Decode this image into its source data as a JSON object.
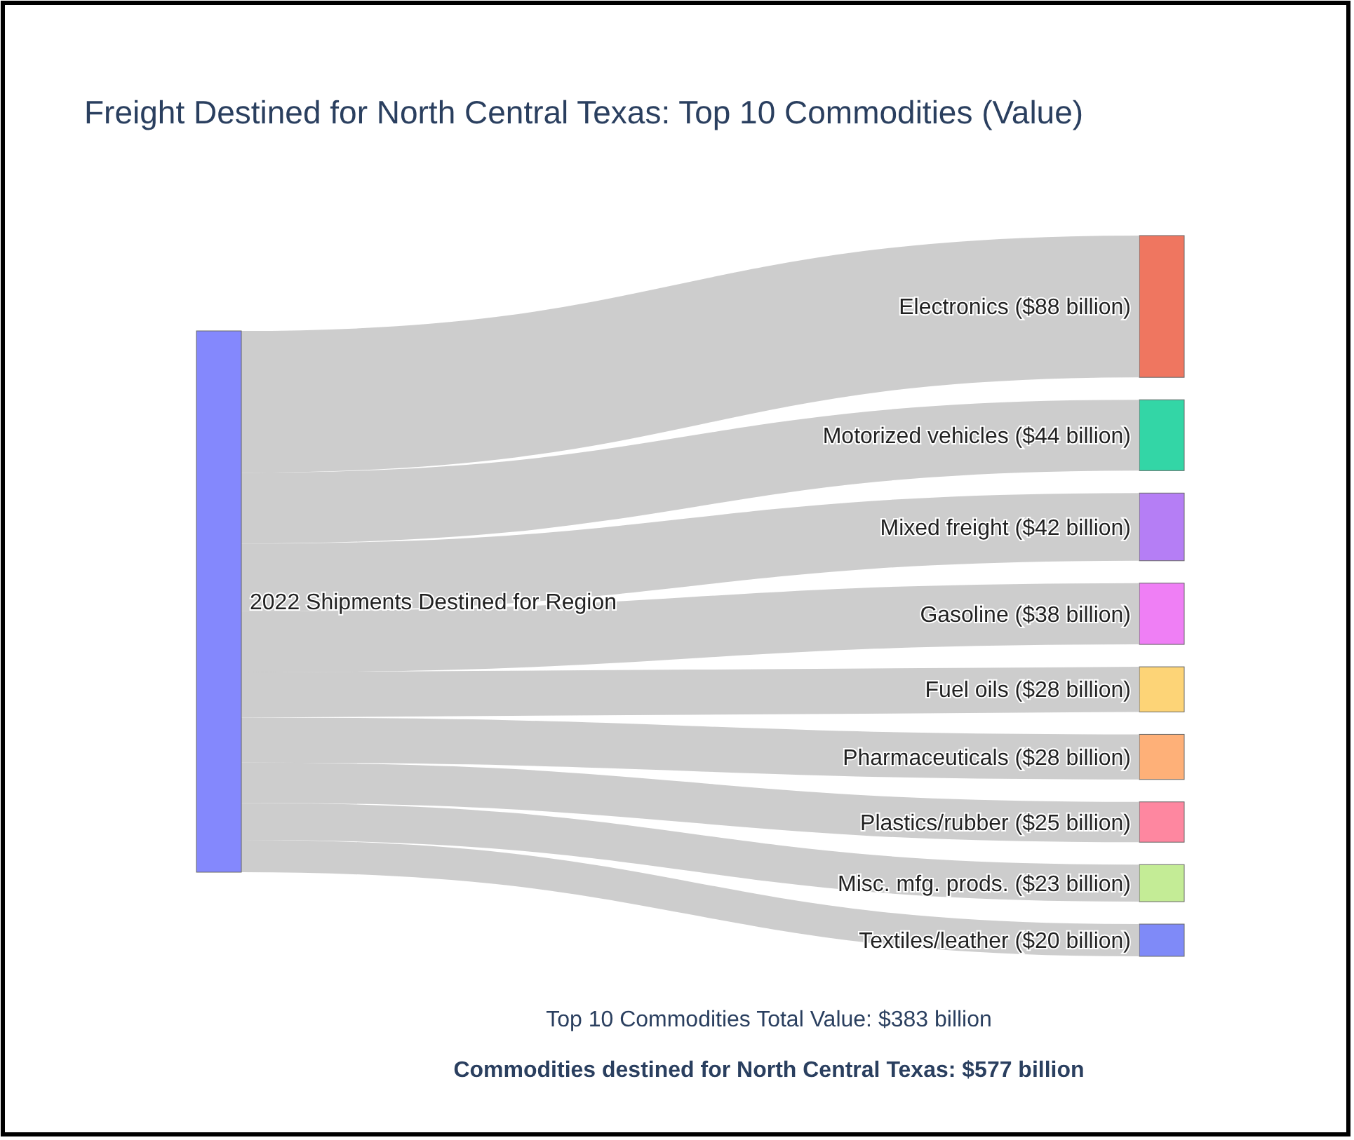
{
  "chart_data": {
    "type": "other",
    "title": "Freight Destined for North Central Texas: Top 10 Commodities (Value)",
    "categories": [
      "Electronics",
      "Motorized vehicles",
      "Mixed freight",
      "Gasoline",
      "Fuel oils",
      "Pharmaceuticals",
      "Plastics/rubber",
      "Misc. mfg. prods.",
      "Textiles/leather"
    ],
    "values": [
      88,
      44,
      42,
      38,
      28,
      28,
      25,
      23,
      20
    ],
    "value_labels": [
      "($88 billion)",
      "($44 billion)",
      "($42 billion)",
      "($38 billion)",
      "($28 billion)",
      "($28 billion)",
      "($25 billion)",
      "($23 billion)",
      "($20 billion)"
    ],
    "colors": [
      "#ef7660",
      "#33d6a6",
      "#b57ef5",
      "#ef7ff5",
      "#fdd477",
      "#feb078",
      "#fe87a0",
      "#c4ec96",
      "#7f8af8"
    ],
    "annotations": [
      "2022 Shipments Destined for Region",
      "Top 10 Commodities Total Value: $383 billion",
      "Commodities destined for North Central Texas: $577 billion"
    ]
  }
}
